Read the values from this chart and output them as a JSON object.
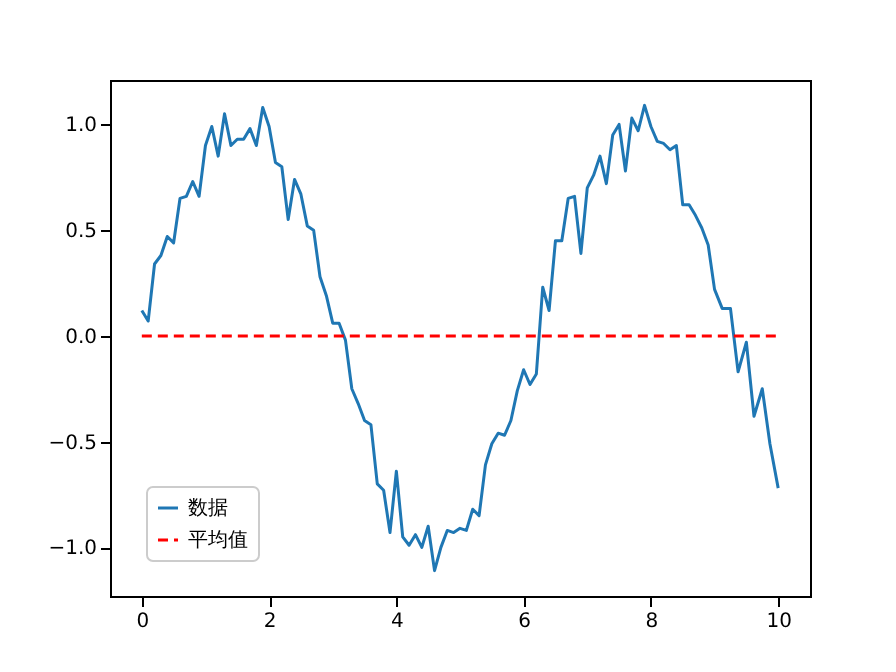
{
  "chart_data": {
    "type": "line",
    "x": [
      0,
      0.1,
      0.2,
      0.3,
      0.4,
      0.5,
      0.6,
      0.7,
      0.8,
      0.9,
      1.0,
      1.1,
      1.2,
      1.3,
      1.4,
      1.5,
      1.6,
      1.7,
      1.8,
      1.9,
      2.0,
      2.1,
      2.2,
      2.3,
      2.4,
      2.5,
      2.6,
      2.7,
      2.8,
      2.9,
      3.0,
      3.1,
      3.2,
      3.3,
      3.4,
      3.5,
      3.6,
      3.7,
      3.8,
      3.9,
      4.0,
      4.1,
      4.2,
      4.3,
      4.4,
      4.5,
      4.6,
      4.7,
      4.8,
      4.9,
      5.0,
      5.1,
      5.2,
      5.3,
      5.4,
      5.5,
      5.6,
      5.7,
      5.8,
      5.9,
      6.0,
      6.1,
      6.2,
      6.3,
      6.4,
      6.5,
      6.6,
      6.7,
      6.8,
      6.9,
      7.0,
      7.1,
      7.2,
      7.3,
      7.4,
      7.5,
      7.6,
      7.7,
      7.8,
      7.9,
      8.0,
      8.1,
      8.2,
      8.3,
      8.4,
      8.5,
      8.6,
      8.7,
      8.8,
      8.9,
      9.0,
      9.12,
      9.25,
      9.37,
      9.5,
      9.62,
      9.75,
      9.87,
      10.0
    ],
    "series": [
      {
        "name": "数据",
        "color": "#1f77b4",
        "values": [
          0.12,
          0.07,
          0.34,
          0.38,
          0.47,
          0.44,
          0.65,
          0.66,
          0.73,
          0.66,
          0.9,
          0.99,
          0.85,
          1.05,
          0.9,
          0.93,
          0.93,
          0.98,
          0.9,
          1.08,
          0.99,
          0.82,
          0.8,
          0.55,
          0.74,
          0.67,
          0.52,
          0.5,
          0.28,
          0.19,
          0.06,
          0.06,
          -0.02,
          -0.25,
          -0.32,
          -0.4,
          -0.42,
          -0.7,
          -0.73,
          -0.93,
          -0.64,
          -0.95,
          -0.99,
          -0.94,
          -1.0,
          -0.9,
          -1.11,
          -1.0,
          -0.92,
          -0.93,
          -0.91,
          -0.92,
          -0.82,
          -0.85,
          -0.61,
          -0.51,
          -0.46,
          -0.47,
          -0.4,
          -0.26,
          -0.16,
          -0.23,
          -0.18,
          0.23,
          0.12,
          0.45,
          0.45,
          0.65,
          0.66,
          0.39,
          0.7,
          0.76,
          0.85,
          0.72,
          0.95,
          1.0,
          0.78,
          1.03,
          0.97,
          1.09,
          0.99,
          0.92,
          0.91,
          0.88,
          0.9,
          0.62,
          0.62,
          0.57,
          0.51,
          0.43,
          0.22,
          0.13,
          0.13,
          -0.17,
          -0.03,
          -0.38,
          -0.25,
          -0.51,
          -0.72
        ]
      },
      {
        "name": "平均值",
        "color": "#ff0000",
        "line_style": "dashed",
        "x": [
          0,
          10
        ],
        "values": [
          0,
          0
        ]
      }
    ],
    "xlim": [
      -0.5,
      10.5
    ],
    "xticks": [
      0,
      2,
      4,
      6,
      8,
      10
    ],
    "ylim": [
      -1.23,
      1.21
    ],
    "yticks": [
      {
        "value": -1,
        "label": "−1.0"
      },
      {
        "value": -0.5,
        "label": "−0.5"
      },
      {
        "value": 0,
        "label": "0.0"
      },
      {
        "value": 0.5,
        "label": "0.5"
      },
      {
        "value": 1,
        "label": "1.0"
      }
    ],
    "legend": "bottom left"
  }
}
